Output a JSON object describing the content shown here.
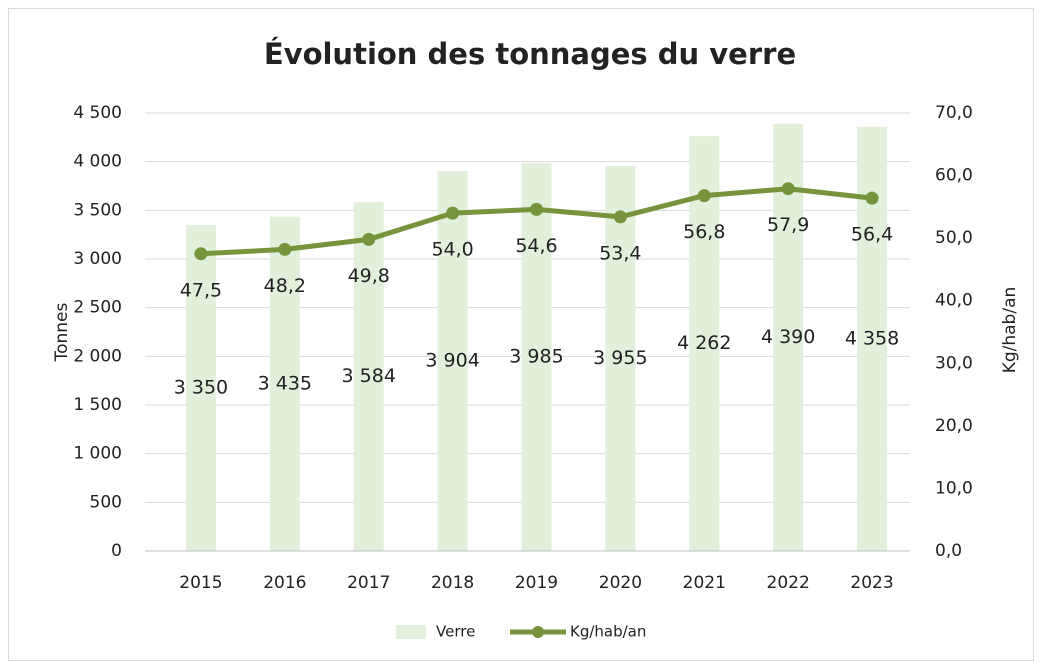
{
  "chart_data": {
    "type": "bar",
    "title": "Évolution des tonnages du verre",
    "categories": [
      "2015",
      "2016",
      "2017",
      "2018",
      "2019",
      "2020",
      "2021",
      "2022",
      "2023"
    ],
    "series": [
      {
        "name": "Verre",
        "type": "bar",
        "color": "#e2efda",
        "values": [
          3350,
          3435,
          3584,
          3904,
          3985,
          3955,
          4262,
          4390,
          4358
        ],
        "value_labels": [
          "3 350",
          "3 435",
          "3 584",
          "3 904",
          "3 985",
          "3 955",
          "4 262",
          "4 390",
          "4 358"
        ]
      },
      {
        "name": "Kg/hab/an",
        "type": "line",
        "axis": "y2",
        "color": "#77933c",
        "values": [
          47.5,
          48.2,
          49.8,
          54.0,
          54.6,
          53.4,
          56.8,
          57.9,
          56.4
        ],
        "value_labels": [
          "47,5",
          "48,2",
          "49,8",
          "54,0",
          "54,6",
          "53,4",
          "56,8",
          "57,9",
          "56,4"
        ]
      }
    ],
    "ylabel": "Tonnes",
    "y2label": "Kg/hab/an",
    "ylim": [
      0,
      4500
    ],
    "yticks": [
      0,
      500,
      {
        "value": 1000,
        "label": "1 000"
      },
      {
        "value": 1500,
        "label": "1 500"
      },
      {
        "value": 2000,
        "label": "2 000"
      },
      {
        "value": 2500,
        "label": "2 500"
      },
      {
        "value": 3000,
        "label": "3 000"
      },
      {
        "value": 3500,
        "label": "3 500"
      },
      {
        "value": 4000,
        "label": "4 000"
      },
      {
        "value": 4500,
        "label": "4 500"
      }
    ],
    "y2lim": [
      0,
      70
    ],
    "y2ticks": [
      {
        "value": 0,
        "label": "0,0"
      },
      {
        "value": 10,
        "label": "10,0"
      },
      {
        "value": 20,
        "label": "20,0"
      },
      {
        "value": 30,
        "label": "30,0"
      },
      {
        "value": 40,
        "label": "40,0"
      },
      {
        "value": 50,
        "label": "50,0"
      },
      {
        "value": 60,
        "label": "60,0"
      },
      {
        "value": 70,
        "label": "70,0"
      }
    ],
    "grid": true,
    "legend": "bottom"
  }
}
